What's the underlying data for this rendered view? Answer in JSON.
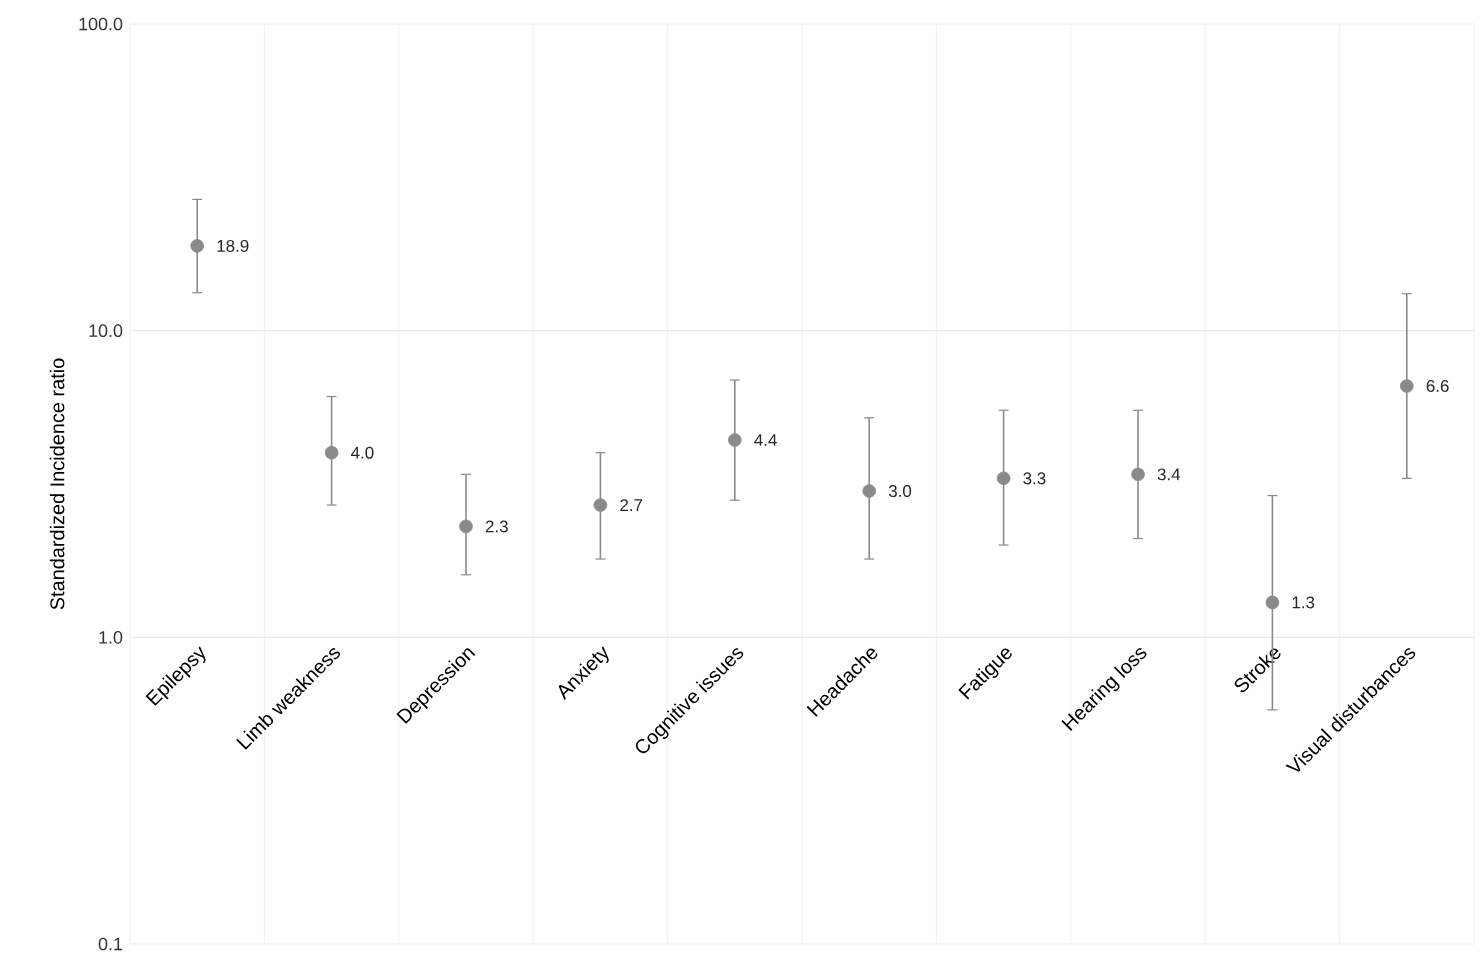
{
  "chart_data": {
    "type": "scatter",
    "ylabel": "Standardized Incidence ratio",
    "categories": [
      "Epilepsy",
      "Limb weakness",
      "Depression",
      "Anxiety",
      "Cognitive issues",
      "Headache",
      "Fatigue",
      "Hearing loss",
      "Stroke",
      "Visual disturbances"
    ],
    "values": [
      18.9,
      4.0,
      2.3,
      2.7,
      4.4,
      3.0,
      3.3,
      3.4,
      1.3,
      6.6
    ],
    "value_labels": [
      "18.9",
      "4.0",
      "2.3",
      "2.7",
      "4.4",
      "3.0",
      "3.3",
      "3.4",
      "1.3",
      "6.6"
    ],
    "errors": [
      [
        13.3,
        26.8
      ],
      [
        2.7,
        6.1
      ],
      [
        1.6,
        3.4
      ],
      [
        1.8,
        4.0
      ],
      [
        2.8,
        6.9
      ],
      [
        1.8,
        5.2
      ],
      [
        2.0,
        5.5
      ],
      [
        2.1,
        5.5
      ],
      [
        0.58,
        2.9
      ],
      [
        3.3,
        13.2
      ]
    ],
    "color": "#8a8a8a",
    "marker": "circle",
    "log": "y",
    "grid": true,
    "ylim": [
      0.1,
      100
    ],
    "yticks": [
      {
        "value": 100,
        "label": "100.0"
      },
      {
        "value": 10,
        "label": "10.0"
      },
      {
        "value": 1,
        "label": "1.0"
      },
      0.1
    ]
  }
}
